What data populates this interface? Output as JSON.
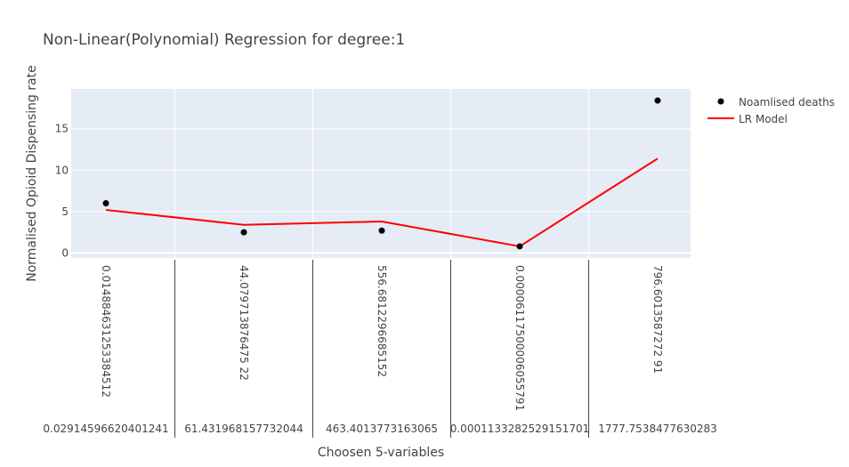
{
  "chart_data": {
    "type": "line",
    "title": "Non-Linear(Polynomial) Regression for degree:1",
    "xlabel": "Choosen 5-variables",
    "ylabel": "Normalised Opioid Dispensing rate",
    "ylim": [
      -0.6,
      19.8
    ],
    "yticks": [
      0,
      5,
      10,
      15
    ],
    "grid": true,
    "legend_position": "top-right",
    "categories_row1": [
      "0.014884631253384512",
      "44.079713876475 22",
      "556.6812296685152",
      "0.00006117500006055791",
      "796.6013587272 91"
    ],
    "categories_row2": [
      "0.02914596620401241",
      "61.431968157732044",
      "463.4013773163065",
      "0.0001133282529151701",
      "1777.7538477630283"
    ],
    "series": [
      {
        "name": "Noamlised deaths",
        "kind": "markers",
        "color": "#000000",
        "values": [
          6.0,
          2.5,
          2.7,
          0.8,
          18.4
        ]
      },
      {
        "name": "LR Model",
        "kind": "line",
        "color": "#ff0000",
        "values": [
          5.2,
          3.4,
          3.8,
          0.8,
          11.4
        ]
      }
    ]
  },
  "colors": {
    "plot_bg": "#e5ecf6",
    "grid": "#ffffff",
    "divider": "#444444"
  }
}
